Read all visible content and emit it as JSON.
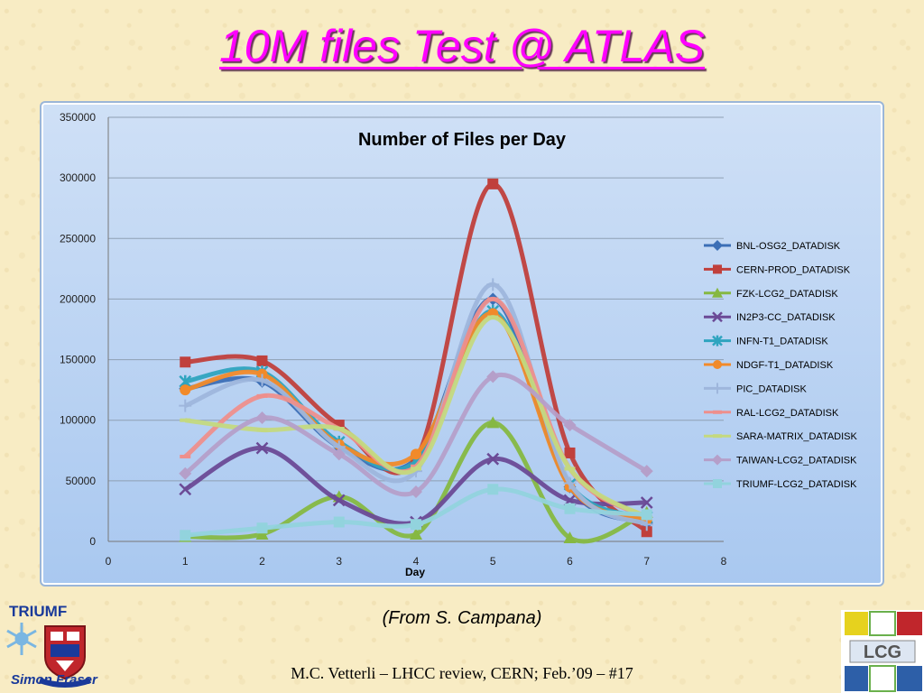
{
  "slide": {
    "title": "10M files Test @ ATLAS",
    "source_note": "(From S. Campana)",
    "footer": "M.C. Vetterli – LHCC review, CERN; Feb.’09 – #17",
    "logos": {
      "left_top_text": "TRIUMF",
      "left_bottom_text": "Simon Fraser",
      "right_text": "LCG"
    }
  },
  "chart_data": {
    "type": "line",
    "title": "Number of Files per Day",
    "xlabel": "Day",
    "ylabel": "",
    "xlim": [
      0,
      8
    ],
    "ylim": [
      0,
      350000
    ],
    "x_ticks": [
      0,
      1,
      2,
      3,
      4,
      5,
      6,
      7,
      8
    ],
    "y_ticks": [
      0,
      50000,
      100000,
      150000,
      200000,
      250000,
      300000,
      350000
    ],
    "grid": true,
    "smooth": true,
    "legend_position": "right",
    "x": [
      1,
      2,
      3,
      4,
      5,
      6,
      7
    ],
    "series": [
      {
        "name": "BNL-OSG2_DATADISK",
        "color": "#3c6fb6",
        "marker": "diamond",
        "values": [
          126000,
          132000,
          78000,
          68000,
          200000,
          45000,
          15000
        ]
      },
      {
        "name": "CERN-PROD_DATADISK",
        "color": "#c0403c",
        "marker": "square",
        "values": [
          148000,
          149000,
          96000,
          68000,
          295000,
          73000,
          8000
        ]
      },
      {
        "name": "FZK-LCG2_DATADISK",
        "color": "#86b842",
        "marker": "triangle",
        "values": [
          4000,
          6000,
          37000,
          6000,
          98000,
          3000,
          24000
        ]
      },
      {
        "name": "IN2P3-CC_DATADISK",
        "color": "#6b4a96",
        "marker": "x",
        "values": [
          43000,
          77000,
          34000,
          16000,
          68000,
          34000,
          32000
        ]
      },
      {
        "name": "INFN-T1_DATADISK",
        "color": "#2fa4bf",
        "marker": "star",
        "values": [
          132000,
          140000,
          82000,
          66000,
          190000,
          47000,
          20000
        ]
      },
      {
        "name": "NDGF-T1_DATADISK",
        "color": "#f18a2a",
        "marker": "circle",
        "values": [
          125000,
          138000,
          80000,
          72000,
          188000,
          45000,
          18000
        ]
      },
      {
        "name": "PIC_DATADISK",
        "color": "#9eb6dc",
        "marker": "plus",
        "values": [
          112000,
          133000,
          78000,
          58000,
          212000,
          48000,
          14000
        ]
      },
      {
        "name": "RAL-LCG2_DATADISK",
        "color": "#ee8f8c",
        "marker": "dash",
        "values": [
          70000,
          120000,
          93000,
          62000,
          200000,
          60000,
          20000
        ]
      },
      {
        "name": "SARA-MATRIX_DATADISK",
        "color": "#c4d97f",
        "marker": "dash",
        "values": [
          100000,
          92000,
          93000,
          60000,
          185000,
          60000,
          20000
        ]
      },
      {
        "name": "TAIWAN-LCG2_DATADISK",
        "color": "#b59fc9",
        "marker": "diamond",
        "values": [
          56000,
          102000,
          72000,
          41000,
          136000,
          96000,
          58000
        ]
      },
      {
        "name": "TRIUMF-LCG2_DATADISK",
        "color": "#92d3dd",
        "marker": "square",
        "values": [
          5000,
          11000,
          16000,
          14000,
          43000,
          27000,
          22000
        ]
      }
    ]
  }
}
